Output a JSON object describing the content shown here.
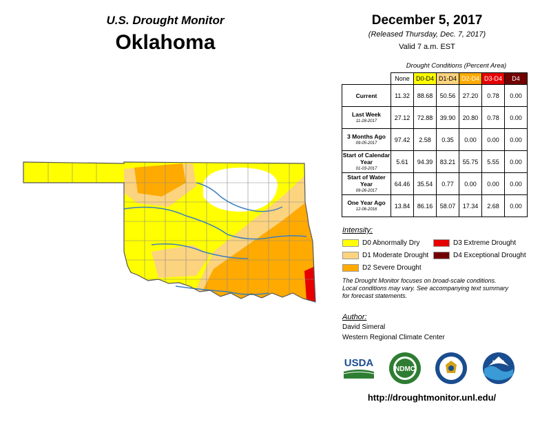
{
  "header": {
    "title_line1": "U.S. Drought Monitor",
    "title_line2": "Oklahoma",
    "date": "December 5, 2017",
    "released": "(Released Thursday, Dec. 7, 2017)",
    "valid": "Valid 7 a.m. EST"
  },
  "table": {
    "caption": "Drought Conditions (Percent Area)",
    "columns": [
      {
        "label": "None",
        "color": "#ffffff",
        "text_color": "#000000"
      },
      {
        "label": "D0-D4",
        "color": "#ffff00",
        "text_color": "#000000"
      },
      {
        "label": "D1-D4",
        "color": "#fcd37f",
        "text_color": "#000000"
      },
      {
        "label": "D2-D4",
        "color": "#ffaa00",
        "text_color": "#ffffff"
      },
      {
        "label": "D3-D4",
        "color": "#e60000",
        "text_color": "#ffffff"
      },
      {
        "label": "D4",
        "color": "#730000",
        "text_color": "#ffffff"
      }
    ],
    "rows": [
      {
        "label": "Current",
        "sub": "",
        "values": [
          "11.32",
          "88.68",
          "50.56",
          "27.20",
          "0.78",
          "0.00"
        ]
      },
      {
        "label": "Last Week",
        "sub": "11-28-2017",
        "values": [
          "27.12",
          "72.88",
          "39.90",
          "20.80",
          "0.78",
          "0.00"
        ]
      },
      {
        "label": "3 Months Ago",
        "sub": "09-05-2017",
        "values": [
          "97.42",
          "2.58",
          "0.35",
          "0.00",
          "0.00",
          "0.00"
        ]
      },
      {
        "label": "Start of Calendar Year",
        "sub": "01-03-2017",
        "values": [
          "5.61",
          "94.39",
          "83.21",
          "55.75",
          "5.55",
          "0.00"
        ]
      },
      {
        "label": "Start of Water Year",
        "sub": "09-26-2017",
        "values": [
          "64.46",
          "35.54",
          "0.77",
          "0.00",
          "0.00",
          "0.00"
        ]
      },
      {
        "label": "One Year Ago",
        "sub": "12-06-2016",
        "values": [
          "13.84",
          "86.16",
          "58.07",
          "17.34",
          "2.68",
          "0.00"
        ]
      }
    ]
  },
  "legend": {
    "title": "Intensity:",
    "items": [
      {
        "label": "D0 Abnormally Dry",
        "color": "#ffff00"
      },
      {
        "label": "D1 Moderate Drought",
        "color": "#fcd37f"
      },
      {
        "label": "D2 Severe Drought",
        "color": "#ffaa00"
      },
      {
        "label": "D3 Extreme Drought",
        "color": "#e60000"
      },
      {
        "label": "D4 Exceptional Drought",
        "color": "#730000"
      }
    ]
  },
  "note": {
    "line1": "The Drought Monitor focuses on broad-scale conditions.",
    "line2": "Local conditions may vary. See accompanying text summary",
    "line3": "for forecast statements."
  },
  "author": {
    "title": "Author:",
    "name": "David Simeral",
    "org": "Western Regional Climate Center"
  },
  "logos": {
    "usda": "USDA",
    "ndmc": "NDMC",
    "noaa": "NOAA"
  },
  "footer": {
    "url": "http://droughtmonitor.unl.edu/"
  },
  "map": {
    "colors": {
      "none": "#ffffff",
      "d0": "#ffff00",
      "d1": "#fcd37f",
      "d2": "#ffaa00",
      "d3": "#e60000",
      "river": "#3a7fc0",
      "border": "#555555"
    }
  }
}
